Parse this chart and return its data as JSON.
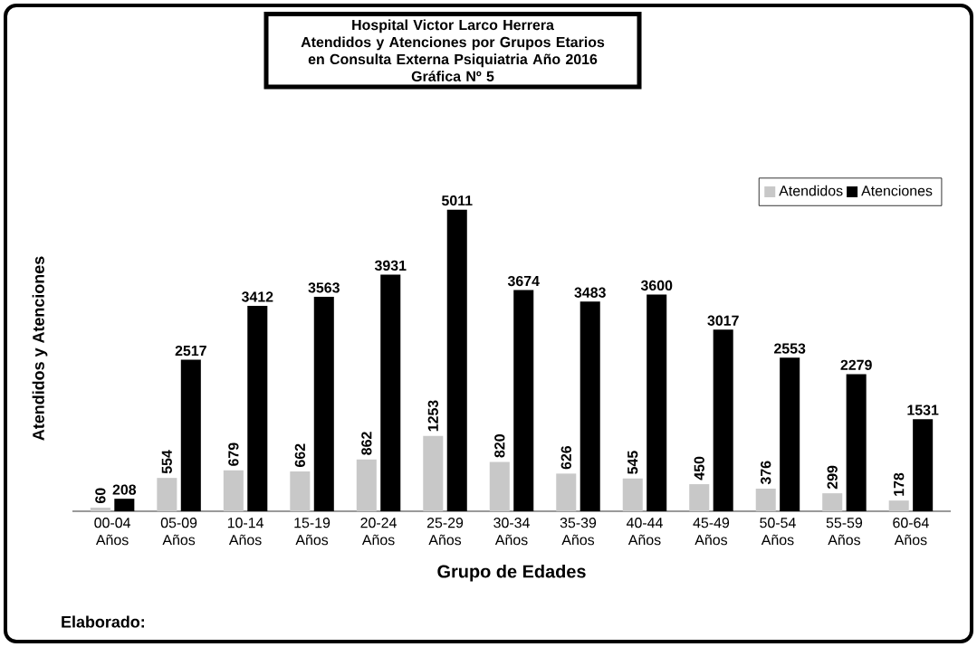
{
  "chart_data": {
    "type": "bar",
    "title": "Hospital Victor Larco Herrera",
    "subtitle": "Atendidos y Atenciones por Grupos Etarios en Consulta Externa Psiquiatria Año 2016",
    "xlabel": "Grupo de Edades",
    "ylabel": "Atendidos y Atenciones",
    "annotations": [
      "Gráfica Nº 5",
      "Elaborado:"
    ],
    "categories": [
      "00-04 Años",
      "05-09 Años",
      "10-14 Años",
      "15-19 Años",
      "20-24 Años",
      "25-29 Años",
      "30-34 Años",
      "35-39 Años",
      "40-44 Años",
      "45-49 Años",
      "50-54 Años",
      "55-59 Años",
      "60-64 Años"
    ],
    "series": [
      {
        "name": "Atendidos",
        "color": "#c8c8c8",
        "values": [
          60,
          554,
          679,
          662,
          862,
          1253,
          820,
          626,
          545,
          450,
          376,
          299,
          178
        ]
      },
      {
        "name": "Atenciones",
        "color": "#000000",
        "values": [
          208,
          2517,
          3412,
          3563,
          3931,
          5011,
          3674,
          3483,
          3600,
          3017,
          2553,
          2279,
          1531
        ]
      }
    ],
    "data_labels": true,
    "legend": "top right"
  }
}
